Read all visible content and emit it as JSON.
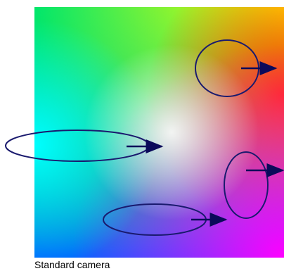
{
  "caption": "Standard camera",
  "colors": {
    "outline": "#1a1a6e",
    "arrow": "#0a0a5a",
    "corner_top_left": "#00e66b",
    "corner_top_right": "#ffff00",
    "corner_right_middle": "#ff3300",
    "corner_bottom_right": "#ff00ff",
    "corner_bottom_left": "#0066ff",
    "left_middle": "#00ffff",
    "center": "#ffffff"
  },
  "regions": [
    {
      "name": "ellipse-top-right"
    },
    {
      "name": "ellipse-left"
    },
    {
      "name": "ellipse-right"
    },
    {
      "name": "ellipse-bottom"
    }
  ]
}
